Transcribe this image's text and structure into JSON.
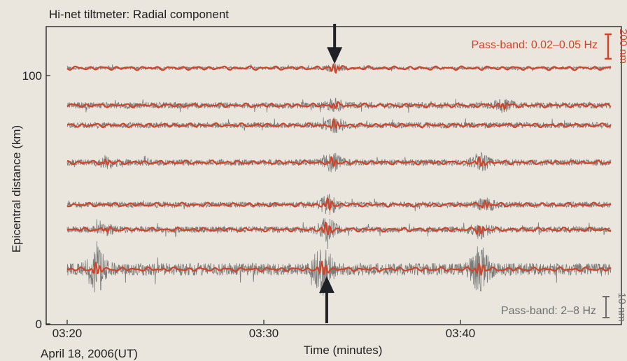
{
  "chart_data": {
    "type": "line",
    "title": "Hi-net tiltmeter: Radial component",
    "xlabel": "Time (minutes)",
    "ylabel": "Epicentral distance (km)",
    "date_label": "April 18, 2006(UT)",
    "x_ticks": [
      "03:20",
      "03:30",
      "03:40"
    ],
    "y_ticks": [
      0,
      100
    ],
    "xlim": [
      "03:20",
      "03:48"
    ],
    "ylim": [
      0,
      118
    ],
    "grid": false,
    "traces": [
      {
        "distance_km": 103,
        "noise": 0.25,
        "burst": 0.15,
        "events": [
          [
            "03:33.6",
            1.0
          ]
        ]
      },
      {
        "distance_km": 88,
        "noise": 0.8,
        "burst": 0.2,
        "events": [
          [
            "03:33.6",
            0.7
          ],
          [
            "03:42.2",
            0.7
          ]
        ]
      },
      {
        "distance_km": 80,
        "noise": 0.7,
        "burst": 0.3,
        "events": [
          [
            "03:33.6",
            1.0
          ]
        ]
      },
      {
        "distance_km": 65,
        "noise": 0.7,
        "burst": 0.6,
        "events": [
          [
            "03:22.0",
            0.6
          ],
          [
            "03:33.5",
            1.0
          ],
          [
            "03:41.0",
            1.0
          ]
        ]
      },
      {
        "distance_km": 48,
        "noise": 0.6,
        "burst": 0.6,
        "events": [
          [
            "03:33.3",
            1.3
          ],
          [
            "03:41.3",
            0.8
          ]
        ]
      },
      {
        "distance_km": 38,
        "noise": 0.6,
        "burst": 0.9,
        "events": [
          [
            "03:22.0",
            0.5
          ],
          [
            "03:33.2",
            1.5
          ],
          [
            "03:41.0",
            1.0
          ]
        ]
      },
      {
        "distance_km": 22,
        "noise": 1.1,
        "burst": 1.8,
        "events": [
          [
            "03:21.5",
            1.4
          ],
          [
            "03:33.0",
            1.6
          ],
          [
            "03:41.0",
            1.4
          ]
        ]
      }
    ],
    "series": [
      {
        "name": "Pass-band: 0.02–0.05 Hz",
        "color": "#d2442a",
        "scale_bar": "200 nm"
      },
      {
        "name": "Pass-band: 2–8 Hz",
        "color": "#6e7070",
        "scale_bar": "10 nm"
      }
    ],
    "annotations": [
      {
        "type": "arrow",
        "direction": "down",
        "at": "03:33.6",
        "target_distance_km": 103
      },
      {
        "type": "arrow",
        "direction": "up",
        "at": "03:33.2",
        "target_distance_km": 22
      }
    ]
  }
}
